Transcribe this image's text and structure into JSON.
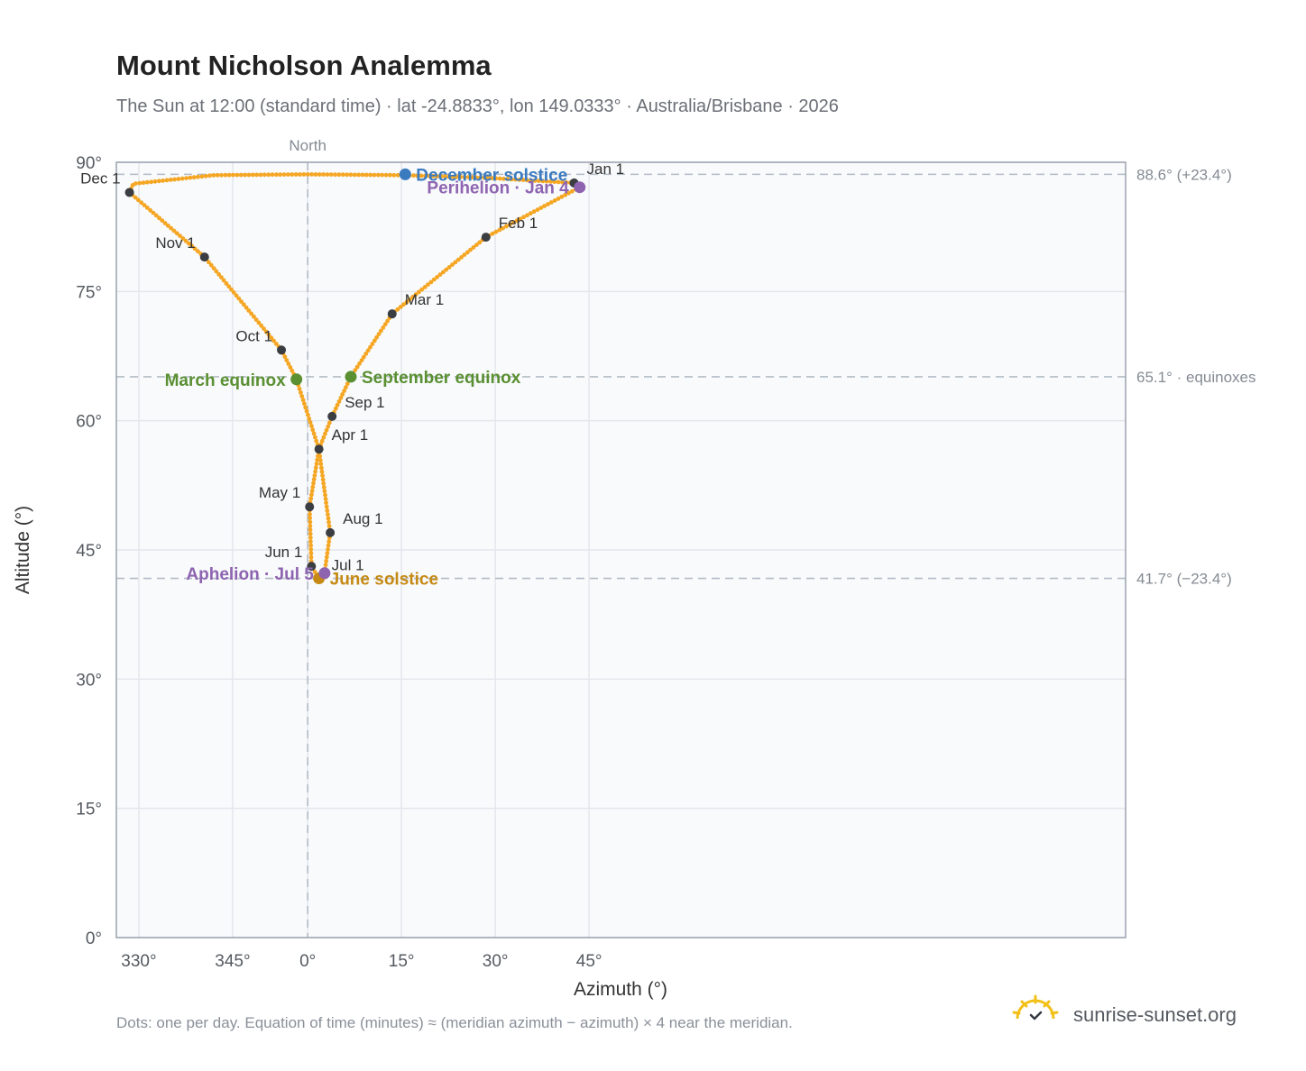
{
  "title": "Mount Nicholson Analemma",
  "subtitle": "The Sun at 12:00 (standard time) · lat -24.8833°, lon 149.0333° · Australia/Brisbane · 2026",
  "footnote": "Dots: one per day. Equation of time (minutes) ≈ (meridian azimuth − azimuth) × 4 near the meridian.",
  "brand": {
    "name": "sunrise-sunset.org",
    "icon": "sun-logo-icon"
  },
  "colors": {
    "curve": "#f5a623",
    "month_marker": "#3a3d42",
    "equinox": "#5a8f32",
    "december_solstice": "#3a7abf",
    "june_solstice": "#c68a14",
    "perihelion_aphelion": "#8e64b0",
    "plot_bg": "#f8fafc",
    "grid": "#e3e7ec",
    "frame": "#9aa3ad",
    "ref_line": "#b3bcc5"
  },
  "chart_data": {
    "type": "scatter",
    "title": "Mount Nicholson Analemma",
    "xlabel": "Azimuth (°)",
    "ylabel": "Altitude (°)",
    "xlim": [
      -10.2,
      43.6
    ],
    "ylim": [
      0,
      90
    ],
    "x_ticks": [
      {
        "value": -9,
        "label": "330°"
      },
      {
        "value": -4,
        "label": "345°"
      },
      {
        "value": 0,
        "label": "0°"
      },
      {
        "value": 5,
        "label": "15°"
      },
      {
        "value": 10,
        "label": "30°"
      },
      {
        "value": 15,
        "label": "45°"
      }
    ],
    "y_ticks": [
      {
        "value": 0,
        "label": "0°"
      },
      {
        "value": 15,
        "label": "15°"
      },
      {
        "value": 30,
        "label": "30°"
      },
      {
        "value": 45,
        "label": "45°"
      },
      {
        "value": 60,
        "label": "60°"
      },
      {
        "value": 75,
        "label": "75°"
      },
      {
        "value": 90,
        "label": "90°"
      }
    ],
    "meridian": {
      "x": 0,
      "label": "North"
    },
    "reference_lines": [
      {
        "y": 88.6,
        "label": "88.6° (+23.4°)"
      },
      {
        "y": 65.1,
        "label": "65.1° · equinoxes"
      },
      {
        "y": 41.7,
        "label": "41.7° (−23.4°)"
      }
    ],
    "path_keypoints": [
      {
        "x": 14.2,
        "y": 87.6
      },
      {
        "x": 14.5,
        "y": 87.1
      },
      {
        "x": 9.5,
        "y": 81.3
      },
      {
        "x": 4.5,
        "y": 72.4
      },
      {
        "x": 2.3,
        "y": 65.1
      },
      {
        "x": 1.3,
        "y": 60.5
      },
      {
        "x": 0.6,
        "y": 56.7
      },
      {
        "x": 0.1,
        "y": 50.0
      },
      {
        "x": 0.2,
        "y": 43.1
      },
      {
        "x": 0.6,
        "y": 41.7
      },
      {
        "x": 0.9,
        "y": 42.3
      },
      {
        "x": 1.2,
        "y": 47.0
      },
      {
        "x": 0.6,
        "y": 56.7
      },
      {
        "x": -0.6,
        "y": 64.8
      },
      {
        "x": -1.4,
        "y": 68.2
      },
      {
        "x": -5.5,
        "y": 79.0
      },
      {
        "x": -9.5,
        "y": 86.5
      },
      {
        "x": -9.3,
        "y": 87.5
      },
      {
        "x": -5.0,
        "y": 88.5
      },
      {
        "x": 0.0,
        "y": 88.6
      },
      {
        "x": 5.0,
        "y": 88.5
      },
      {
        "x": 9.5,
        "y": 88.2
      },
      {
        "x": 14.2,
        "y": 87.6
      }
    ],
    "month_markers": [
      {
        "label": "Jan 1",
        "x": 14.2,
        "y": 87.6
      },
      {
        "label": "Feb 1",
        "x": 9.5,
        "y": 81.3
      },
      {
        "label": "Mar 1",
        "x": 4.5,
        "y": 72.4
      },
      {
        "label": "Apr 1",
        "x": 0.6,
        "y": 56.7
      },
      {
        "label": "May 1",
        "x": 0.1,
        "y": 50.0
      },
      {
        "label": "Jun 1",
        "x": 0.2,
        "y": 43.1
      },
      {
        "label": "Jul 1",
        "x": 0.6,
        "y": 41.6
      },
      {
        "label": "Aug 1",
        "x": 1.2,
        "y": 47.0
      },
      {
        "label": "Sep 1",
        "x": 1.3,
        "y": 60.5
      },
      {
        "label": "Oct 1",
        "x": -1.4,
        "y": 68.2
      },
      {
        "label": "Nov 1",
        "x": -5.5,
        "y": 79.0
      },
      {
        "label": "Dec 1",
        "x": -9.5,
        "y": 86.5
      }
    ],
    "events": [
      {
        "label": "December solstice",
        "x": 5.2,
        "y": 88.6,
        "color": "#3a7abf"
      },
      {
        "label": "Perihelion · Jan 4",
        "x": 14.5,
        "y": 87.1,
        "color": "#8e64b0"
      },
      {
        "label": "March equinox",
        "x": -0.6,
        "y": 64.8,
        "color": "#5a8f32"
      },
      {
        "label": "September equinox",
        "x": 2.3,
        "y": 65.1,
        "color": "#5a8f32"
      },
      {
        "label": "June solstice",
        "x": 0.6,
        "y": 41.7,
        "color": "#c68a14"
      },
      {
        "label": "Aphelion · Jul 5",
        "x": 0.9,
        "y": 42.3,
        "color": "#8e64b0"
      }
    ]
  }
}
